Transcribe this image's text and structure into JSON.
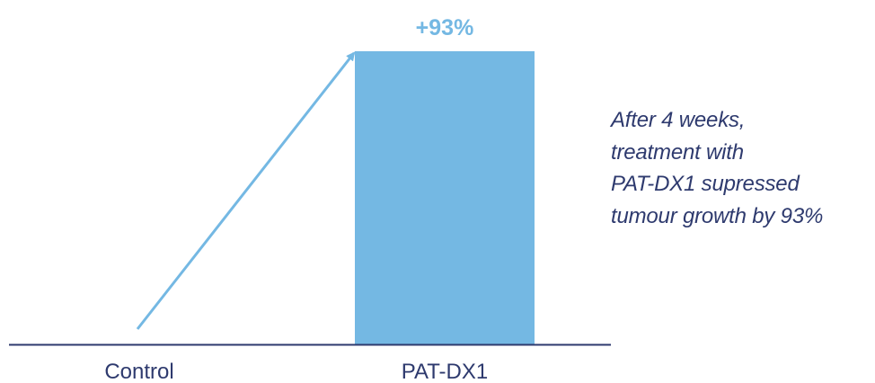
{
  "chart_data": {
    "type": "bar",
    "categories": [
      "Control",
      "PAT-DX1"
    ],
    "values": [
      0,
      93
    ],
    "unit": "%",
    "data_labels": [
      "",
      "+93%"
    ],
    "ylim": [
      0,
      100
    ],
    "grid": false,
    "title": "",
    "xlabel": "",
    "ylabel": "",
    "annotation_lines": [
      "After 4 weeks,",
      "treatment with",
      "PAT-DX1 supressed",
      "tumour growth by 93%"
    ],
    "colors": {
      "bar": "#74b8e3",
      "arrow": "#74b8e3",
      "axis": "#2e3a6e",
      "text": "#2e3a6e"
    }
  }
}
